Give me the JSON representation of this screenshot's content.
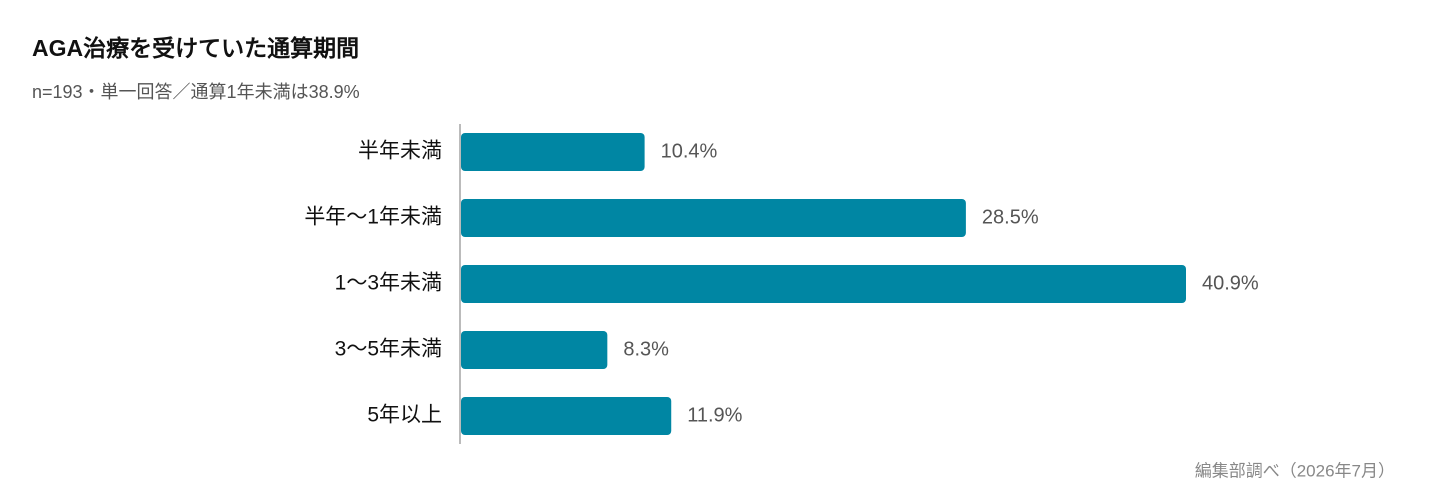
{
  "chart_data": {
    "type": "barh",
    "title": "AGA治療を受けていた通算期間",
    "subtitle": "n=193・単一回答／通算1年未満は38.9%",
    "source": "編集部調べ（2026年7月）",
    "categories": [
      "半年未満",
      "半年〜1年未満",
      "1〜3年未満",
      "3〜5年未満",
      "5年以上"
    ],
    "values": [
      10.4,
      28.5,
      40.9,
      8.3,
      11.9
    ],
    "value_labels": [
      "10.4%",
      "28.5%",
      "40.9%",
      "8.3%",
      "11.9%"
    ],
    "color": "#0086a3"
  }
}
